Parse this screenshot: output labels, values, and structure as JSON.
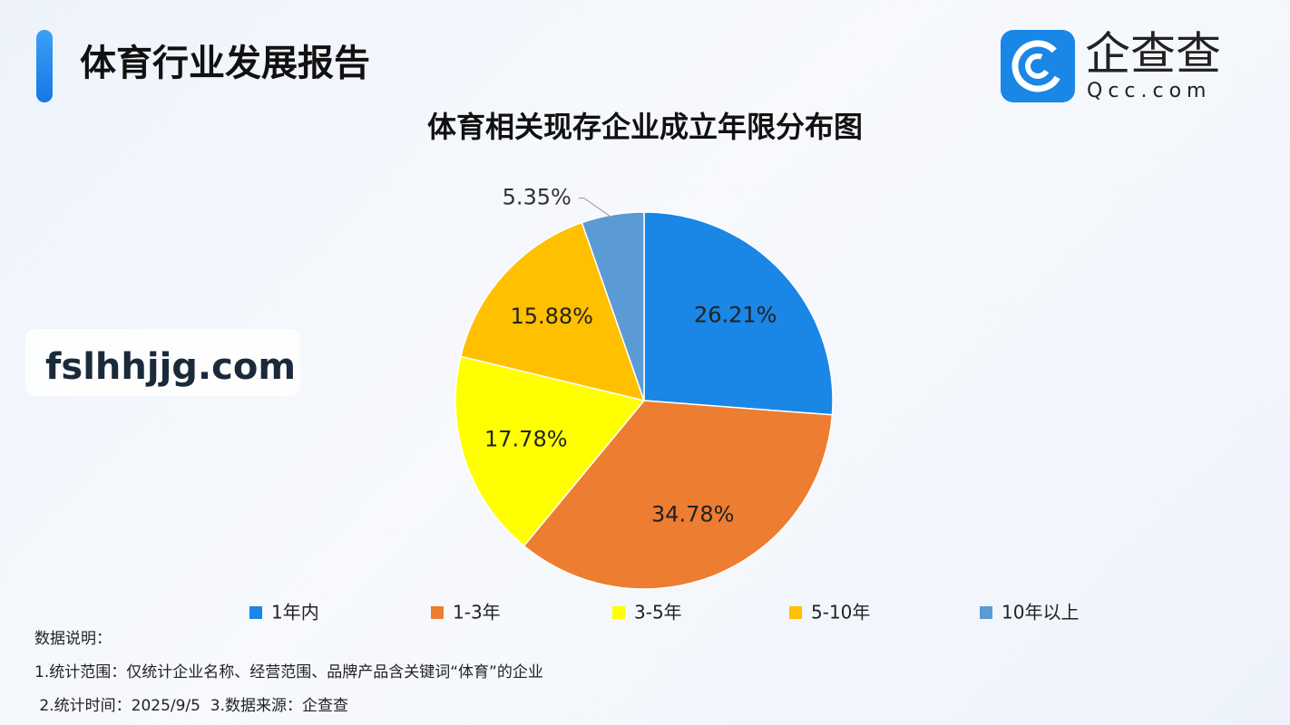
{
  "header": {
    "title": "体育行业发展报告"
  },
  "logo": {
    "name": "企查查",
    "domain": "Qcc.com"
  },
  "watermark": "fslhhjjg.com",
  "chart_data": {
    "type": "pie",
    "title": "体育相关现存企业成立年限分布图",
    "categories": [
      "1年内",
      "1-3年",
      "3-5年",
      "5-10年",
      "10年以上"
    ],
    "values": [
      26.21,
      34.78,
      17.78,
      15.88,
      5.35
    ],
    "value_labels": [
      "26.21%",
      "34.78%",
      "17.78%",
      "15.88%",
      "5.35%"
    ],
    "colors": [
      "#1a86e6",
      "#ed7d31",
      "#ffff00",
      "#ffc000",
      "#5b9bd5"
    ],
    "legend": "bottom"
  },
  "notes": {
    "heading": "数据说明：",
    "lines": [
      "1.统计范围：仅统计企业名称、经营范围、品牌产品含关键词“体育”的企业",
      " 2.统计时间：2025/9/5  3.数据来源：企查查"
    ]
  }
}
